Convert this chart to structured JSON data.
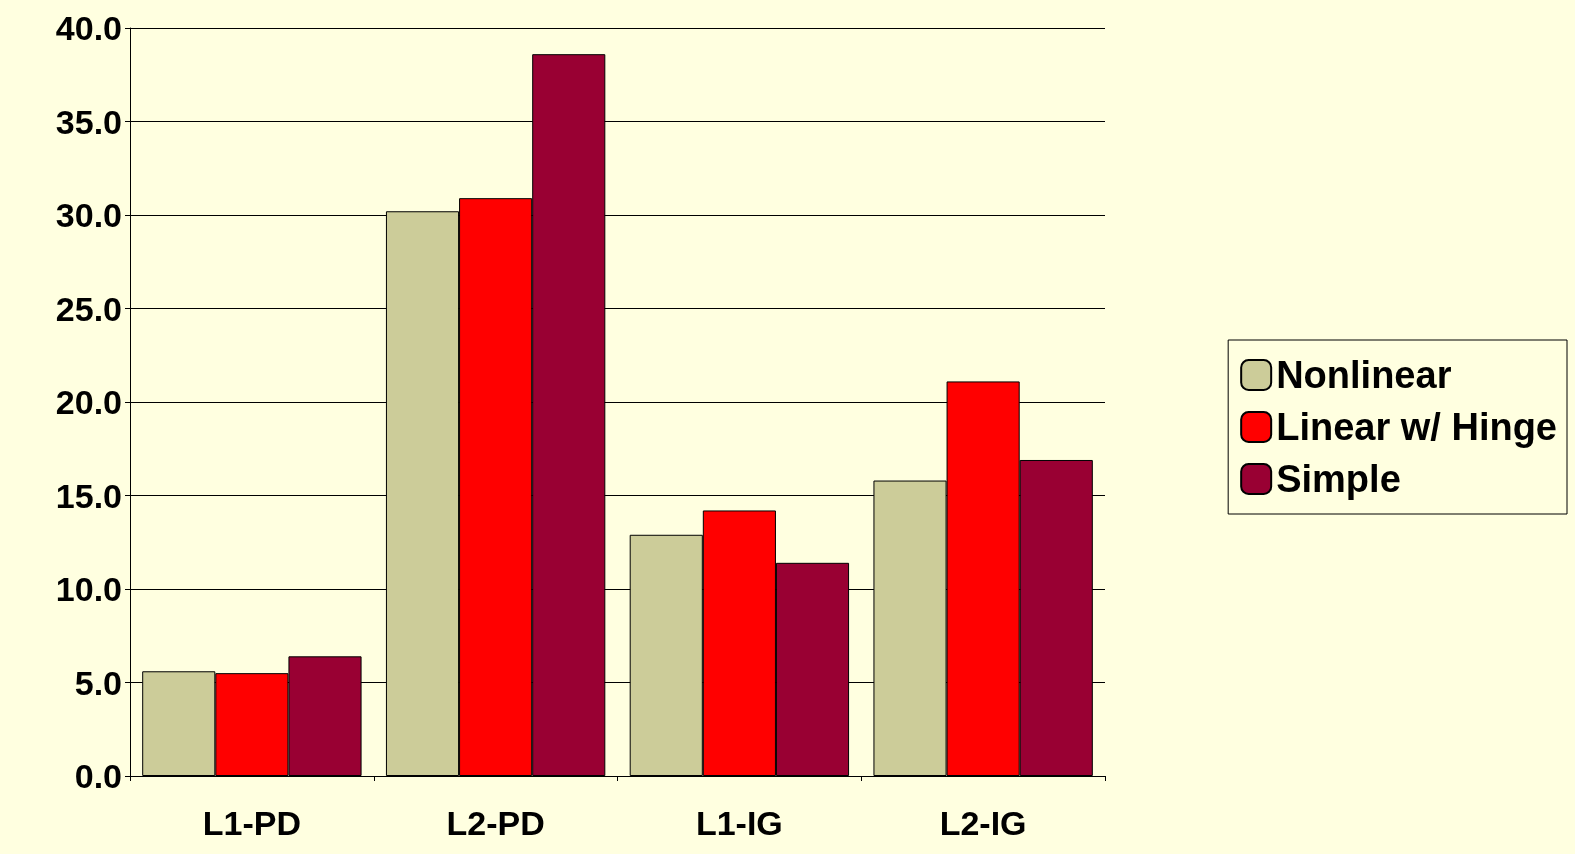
{
  "chart_data": {
    "type": "bar",
    "categories": [
      "L1-PD",
      "L2-PD",
      "L1-IG",
      "L2-IG"
    ],
    "series": [
      {
        "name": "Nonlinear",
        "color": "#cccc99",
        "values": [
          5.6,
          30.2,
          12.9,
          15.8
        ]
      },
      {
        "name": "Linear w/ Hinge",
        "color": "#ff0000",
        "values": [
          5.5,
          30.9,
          14.2,
          21.1
        ]
      },
      {
        "name": "Simple",
        "color": "#990033",
        "values": [
          6.4,
          38.6,
          11.4,
          16.9
        ]
      }
    ],
    "ylim": [
      0,
      40
    ],
    "yticks": [
      {
        "value": 0,
        "label": "0.0"
      },
      {
        "value": 5,
        "label": "5.0"
      },
      {
        "value": 10,
        "label": "10.0"
      },
      {
        "value": 15,
        "label": "15.0"
      },
      {
        "value": 20,
        "label": "20.0"
      },
      {
        "value": 25,
        "label": "25.0"
      },
      {
        "value": 30,
        "label": "30.0"
      },
      {
        "value": 35,
        "label": "35.0"
      },
      {
        "value": 40,
        "label": "40.0"
      }
    ],
    "grid": "y",
    "legend": "right"
  }
}
